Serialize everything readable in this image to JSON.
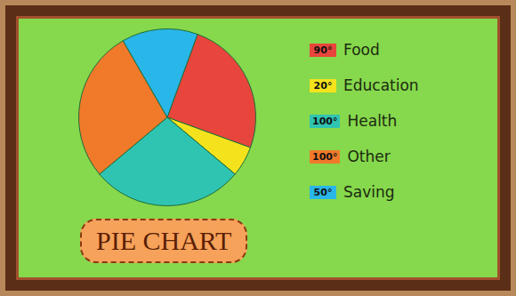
{
  "chart_data": {
    "type": "pie",
    "title": "PIE CHART",
    "categories": [
      "Food",
      "Education",
      "Health",
      "Other",
      "Saving"
    ],
    "values": [
      90,
      20,
      100,
      100,
      50
    ],
    "value_labels": [
      "90°",
      "20°",
      "100°",
      "100°",
      "50°"
    ],
    "colors": [
      "#e8453c",
      "#f4e31c",
      "#2fc4b2",
      "#f07a2a",
      "#29b6e8"
    ],
    "legend": "right"
  }
}
